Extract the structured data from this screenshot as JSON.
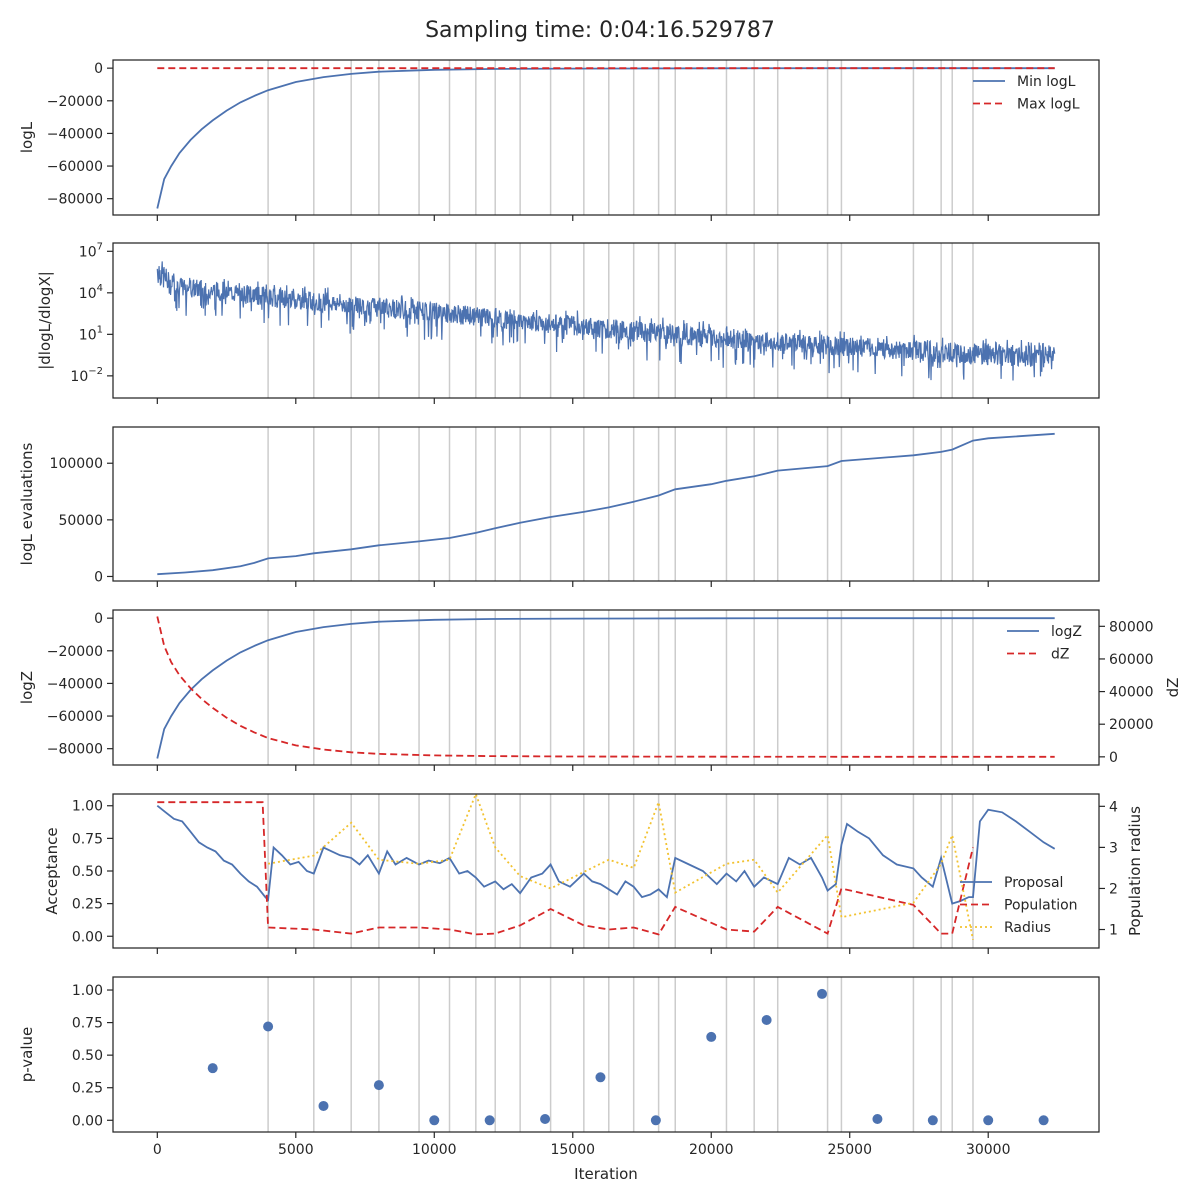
{
  "title": "Sampling time: 0:04:16.529787",
  "x_axis": {
    "label": "Iteration",
    "ticks": [
      0,
      5000,
      10000,
      15000,
      20000,
      25000,
      30000
    ],
    "xlim": [
      -1600,
      34000
    ]
  },
  "vlines": [
    4000,
    5650,
    7000,
    8000,
    9450,
    10550,
    11500,
    12200,
    13100,
    14200,
    15400,
    16300,
    17200,
    18100,
    18700,
    20550,
    21550,
    22400,
    24200,
    24700,
    27300,
    28300,
    28700,
    29450
  ],
  "colors": {
    "blue": "#4c72b0",
    "red": "#c44e52",
    "dashred": "#d62728",
    "yellow": "#f2c230",
    "grid": "#cccccc"
  },
  "chart_data": [
    {
      "type": "line",
      "ylabel": "logL",
      "ylim": [
        -90000,
        5000
      ],
      "yticks": [
        0,
        -20000,
        -40000,
        -60000,
        -80000
      ],
      "ytick_labels": [
        "0",
        "−20000",
        "−40000",
        "−60000",
        "−80000"
      ],
      "legend": {
        "position": "top-right",
        "entries": [
          "Min logL",
          "Max logL"
        ]
      },
      "series": [
        {
          "name": "Min logL",
          "style": "solid",
          "x": [
            0,
            250,
            500,
            800,
            1200,
            1600,
            2000,
            2500,
            3000,
            3500,
            4000,
            5000,
            6000,
            7000,
            8000,
            10000,
            12000,
            15000,
            20000,
            25000,
            30000,
            32400
          ],
          "y": [
            -86000,
            -68000,
            -60000,
            -52000,
            -44000,
            -37500,
            -32000,
            -26000,
            -21000,
            -17000,
            -13500,
            -8500,
            -5500,
            -3500,
            -2200,
            -1000,
            -500,
            -250,
            -100,
            -50,
            -20,
            -10
          ]
        },
        {
          "name": "Max logL",
          "style": "dashed",
          "x": [
            0,
            32400
          ],
          "y": [
            0,
            0
          ]
        }
      ]
    },
    {
      "type": "line",
      "ylabel": "|dlogL/dlogX|",
      "scale": "log",
      "ylim_log10": [
        -3.6,
        7.6
      ],
      "yticks": [
        7,
        4,
        1,
        -2
      ],
      "ytick_labels": [
        "10^7",
        "10^4",
        "10^1",
        "10^−2"
      ],
      "series": [
        {
          "name": "",
          "x": [
            0,
            500,
            5000,
            10000,
            15000,
            20000,
            25000,
            30000,
            32400
          ],
          "y_log10_upper": [
            6.9,
            5.2,
            4.2,
            3.3,
            2.4,
            1.5,
            0.8,
            0.3,
            0.2
          ],
          "y_log10_lower": [
            4.6,
            3.8,
            2.8,
            1.9,
            0.9,
            0.0,
            -0.6,
            -1.3,
            -1.4
          ]
        }
      ]
    },
    {
      "type": "line",
      "ylabel": "logL evaluations",
      "ylim": [
        -4000,
        132000
      ],
      "yticks": [
        0,
        50000,
        100000
      ],
      "ytick_labels": [
        "0",
        "50000",
        "100000"
      ],
      "series": [
        {
          "name": "",
          "x": [
            0,
            1000,
            2000,
            3000,
            3500,
            4000,
            5000,
            5650,
            7000,
            8000,
            9450,
            10550,
            11500,
            12200,
            13100,
            14200,
            15400,
            16300,
            17200,
            18100,
            18700,
            20000,
            20550,
            21550,
            22400,
            24200,
            24700,
            27300,
            28300,
            28700,
            29450,
            30000,
            32400
          ],
          "y": [
            2000,
            3500,
            5500,
            9000,
            12000,
            16000,
            18000,
            20500,
            24000,
            27500,
            31000,
            34000,
            38500,
            42500,
            47500,
            52500,
            57000,
            61000,
            66000,
            71500,
            77000,
            81500,
            84500,
            88500,
            93500,
            97500,
            102000,
            107000,
            110000,
            112000,
            120000,
            122000,
            126000
          ]
        }
      ]
    },
    {
      "type": "line",
      "ylabel": "logZ",
      "ylabel_right": "dZ",
      "ylim": [
        -90000,
        5000
      ],
      "yticks": [
        0,
        -20000,
        -40000,
        -60000,
        -80000
      ],
      "ytick_labels": [
        "0",
        "−20000",
        "−40000",
        "−60000",
        "−80000"
      ],
      "ylim_right": [
        -5000,
        90000
      ],
      "yticks_right": [
        80000,
        60000,
        40000,
        20000,
        0
      ],
      "legend": {
        "position": "top-right",
        "entries": [
          "logZ",
          "dZ"
        ]
      },
      "series": [
        {
          "name": "logZ",
          "axis": "left",
          "style": "solid",
          "x": [
            0,
            250,
            500,
            800,
            1200,
            1600,
            2000,
            2500,
            3000,
            3500,
            4000,
            5000,
            6000,
            7000,
            8000,
            10000,
            12000,
            15000,
            20000,
            25000,
            30000,
            32400
          ],
          "y": [
            -86000,
            -68000,
            -60000,
            -52000,
            -44000,
            -37500,
            -32000,
            -26000,
            -21000,
            -17000,
            -13500,
            -8500,
            -5500,
            -3500,
            -2200,
            -1000,
            -500,
            -250,
            -100,
            -50,
            -20,
            -10
          ]
        },
        {
          "name": "dZ",
          "axis": "right",
          "style": "dashed",
          "x": [
            0,
            250,
            500,
            800,
            1200,
            1600,
            2000,
            2500,
            3000,
            3500,
            4000,
            5000,
            6000,
            7000,
            8000,
            10000,
            12000,
            15000,
            20000,
            25000,
            30000,
            32400
          ],
          "y": [
            86000,
            68000,
            58000,
            50000,
            42000,
            35500,
            30000,
            24000,
            19000,
            15000,
            11500,
            7000,
            4500,
            2800,
            1800,
            900,
            450,
            220,
            90,
            40,
            15,
            8
          ]
        }
      ]
    },
    {
      "type": "line",
      "ylabel": "Acceptance",
      "ylabel_right": "Population radius",
      "ylim": [
        -0.09,
        1.09
      ],
      "yticks": [
        1.0,
        0.75,
        0.5,
        0.25,
        0.0
      ],
      "ytick_labels": [
        "1.00",
        "0.75",
        "0.50",
        "0.25",
        "0.00"
      ],
      "ylim_right": [
        0.55,
        4.3
      ],
      "yticks_right": [
        4,
        3,
        2,
        1
      ],
      "legend": {
        "position": "lower-right",
        "entries": [
          "Proposal",
          "Population",
          "Radius"
        ]
      },
      "series": [
        {
          "name": "Proposal",
          "axis": "left",
          "style": "solid",
          "x": [
            0,
            300,
            600,
            900,
            1200,
            1500,
            1800,
            2100,
            2400,
            2700,
            3000,
            3300,
            3600,
            3900,
            4000,
            4200,
            4500,
            4800,
            5100,
            5400,
            5650,
            6000,
            6300,
            6600,
            7000,
            7300,
            7600,
            8000,
            8300,
            8600,
            9000,
            9450,
            9800,
            10200,
            10550,
            10900,
            11200,
            11500,
            11800,
            12200,
            12500,
            12800,
            13100,
            13500,
            13900,
            14200,
            14500,
            14900,
            15400,
            15700,
            16000,
            16300,
            16600,
            16900,
            17200,
            17500,
            17800,
            18100,
            18400,
            18700,
            19200,
            19700,
            20200,
            20550,
            20900,
            21200,
            21550,
            21900,
            22400,
            22800,
            23200,
            23600,
            24000,
            24200,
            24500,
            24700,
            24900,
            25300,
            25700,
            26200,
            26700,
            27300,
            27600,
            28000,
            28300,
            28700,
            29000,
            29300,
            29450,
            29700,
            30000,
            30500,
            31000,
            31500,
            32000,
            32400
          ],
          "y": [
            1.0,
            0.95,
            0.9,
            0.88,
            0.8,
            0.72,
            0.68,
            0.65,
            0.58,
            0.55,
            0.48,
            0.42,
            0.38,
            0.3,
            0.28,
            0.68,
            0.62,
            0.55,
            0.57,
            0.5,
            0.48,
            0.68,
            0.65,
            0.62,
            0.6,
            0.55,
            0.62,
            0.48,
            0.65,
            0.55,
            0.6,
            0.55,
            0.58,
            0.56,
            0.6,
            0.48,
            0.5,
            0.45,
            0.38,
            0.42,
            0.36,
            0.4,
            0.33,
            0.45,
            0.48,
            0.55,
            0.42,
            0.38,
            0.48,
            0.42,
            0.4,
            0.36,
            0.32,
            0.42,
            0.38,
            0.3,
            0.32,
            0.36,
            0.3,
            0.6,
            0.55,
            0.5,
            0.4,
            0.48,
            0.42,
            0.5,
            0.38,
            0.45,
            0.4,
            0.6,
            0.55,
            0.6,
            0.45,
            0.35,
            0.4,
            0.7,
            0.86,
            0.8,
            0.75,
            0.62,
            0.55,
            0.52,
            0.45,
            0.38,
            0.6,
            0.25,
            0.27,
            0.3,
            0.3,
            0.88,
            0.97,
            0.95,
            0.88,
            0.8,
            0.72,
            0.67
          ]
        },
        {
          "name": "Population",
          "axis": "right",
          "style": "dashed",
          "x": [
            0,
            3800,
            4000,
            5650,
            7000,
            8000,
            9450,
            10550,
            11500,
            12200,
            13100,
            14200,
            15400,
            16300,
            17200,
            18100,
            18700,
            20550,
            21550,
            22400,
            24200,
            24700,
            27300,
            28300,
            28700,
            29450
          ],
          "y": [
            4.1,
            4.1,
            1.05,
            1.0,
            0.9,
            1.05,
            1.05,
            1.0,
            0.88,
            0.9,
            1.1,
            1.5,
            1.1,
            1.0,
            1.05,
            0.88,
            1.55,
            1.0,
            0.95,
            1.55,
            0.9,
            2.0,
            1.6,
            0.9,
            0.9,
            3.0
          ]
        },
        {
          "name": "Radius",
          "axis": "right",
          "style": "dotted",
          "x": [
            4000,
            5650,
            7000,
            8000,
            9450,
            10550,
            11500,
            12200,
            13100,
            14200,
            15400,
            16300,
            17200,
            18100,
            18700,
            20550,
            21550,
            22400,
            24200,
            24700,
            27300,
            28300,
            28700,
            29450
          ],
          "y": [
            2.6,
            2.8,
            3.6,
            2.7,
            2.6,
            2.7,
            4.3,
            3.0,
            2.3,
            2.0,
            2.4,
            2.7,
            2.5,
            4.1,
            1.9,
            2.6,
            2.7,
            1.9,
            3.3,
            1.3,
            1.65,
            2.6,
            3.3,
            0.75
          ]
        }
      ]
    },
    {
      "type": "scatter",
      "ylabel": "p-value",
      "ylim": [
        -0.09,
        1.1
      ],
      "yticks": [
        1.0,
        0.75,
        0.5,
        0.25,
        0.0
      ],
      "ytick_labels": [
        "1.00",
        "0.75",
        "0.50",
        "0.25",
        "0.00"
      ],
      "series": [
        {
          "name": "",
          "x": [
            2000,
            4000,
            6000,
            8000,
            10000,
            12000,
            14000,
            16000,
            18000,
            20000,
            22000,
            24000,
            26000,
            28000,
            30000,
            32000
          ],
          "y": [
            0.4,
            0.72,
            0.11,
            0.27,
            0.0,
            0.0,
            0.01,
            0.33,
            0.0,
            0.64,
            0.77,
            0.97,
            0.01,
            0.0,
            0.0,
            0.0
          ]
        }
      ]
    }
  ]
}
